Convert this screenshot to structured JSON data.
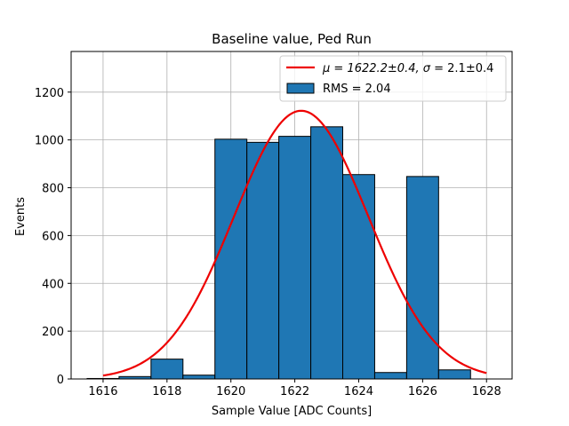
{
  "chart_data": {
    "type": "bar",
    "title": "Baseline value, Ped Run",
    "xlabel": "Sample Value [ADC Counts]",
    "ylabel": "Events",
    "xlim": [
      1615,
      1628.8
    ],
    "ylim": [
      0,
      1370
    ],
    "xticks": [
      1616,
      1618,
      1620,
      1622,
      1624,
      1626,
      1628
    ],
    "yticks": [
      0,
      200,
      400,
      600,
      800,
      1000,
      1200
    ],
    "grid": true,
    "bin_edges": [
      1615.5,
      1616.5,
      1617.5,
      1618.5,
      1619.5,
      1620.5,
      1621.5,
      1622.5,
      1623.5,
      1624.5,
      1625.5,
      1626.5,
      1627.5
    ],
    "values": [
      2,
      10,
      83,
      16,
      1003,
      990,
      1015,
      1055,
      855,
      27,
      847,
      38
    ],
    "bar_color": "#1f77b4",
    "fit": {
      "mu": 1622.2,
      "sigma": 2.1,
      "amplitude": 1122,
      "x_range": [
        1616,
        1628
      ],
      "color": "#ee0000"
    },
    "legend": {
      "location": "upper right",
      "entries": [
        {
          "label_pre": "μ = 1622.2±0.4, ",
          "label_post": " = 2.1±0.4",
          "symbol": "σ",
          "marker": "line",
          "color": "#ee0000"
        },
        {
          "label": "RMS = 2.04",
          "marker": "patch",
          "color": "#1f77b4"
        }
      ]
    }
  }
}
